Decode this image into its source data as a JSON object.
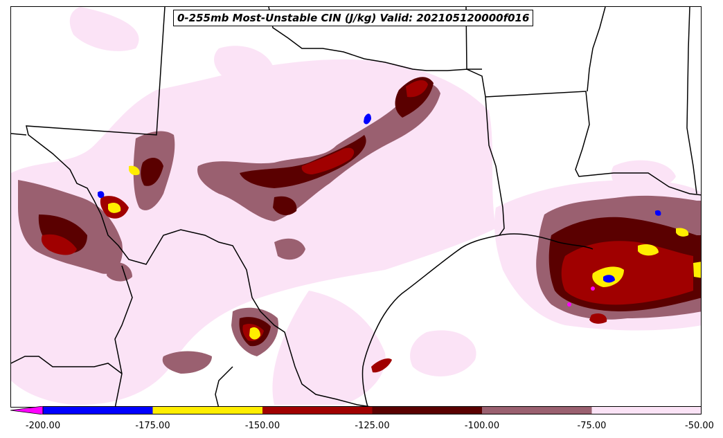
{
  "title": "0-255mb Most-Unstable CIN (J/kg) Valid: 202105120000f016",
  "colorbar": {
    "ticks": [
      "-200.00",
      "-175.00",
      "-150.00",
      "-125.00",
      "-100.00",
      "-75.00",
      "-50.00"
    ],
    "bins": [
      {
        "range": "< -200",
        "color": "#ff00ff"
      },
      {
        "range": "-200 to -175",
        "color": "#0000ff"
      },
      {
        "range": "-175 to -150",
        "color": "#ffee00"
      },
      {
        "range": "-150 to -125",
        "color": "#a00000"
      },
      {
        "range": "-125 to -100",
        "color": "#5a0000"
      },
      {
        "range": "-100 to -75",
        "color": "#9a6070"
      },
      {
        "range": "-75 to -50",
        "color": "#fbe3f6"
      }
    ]
  },
  "colors": {
    "light_pink": "#fbe3f6",
    "mauve": "#9a6070",
    "dark_red": "#5a0000",
    "red": "#a00000",
    "yellow": "#ffee00",
    "blue": "#0000ff",
    "magenta": "#ff00ff",
    "boundary": "#000000"
  }
}
